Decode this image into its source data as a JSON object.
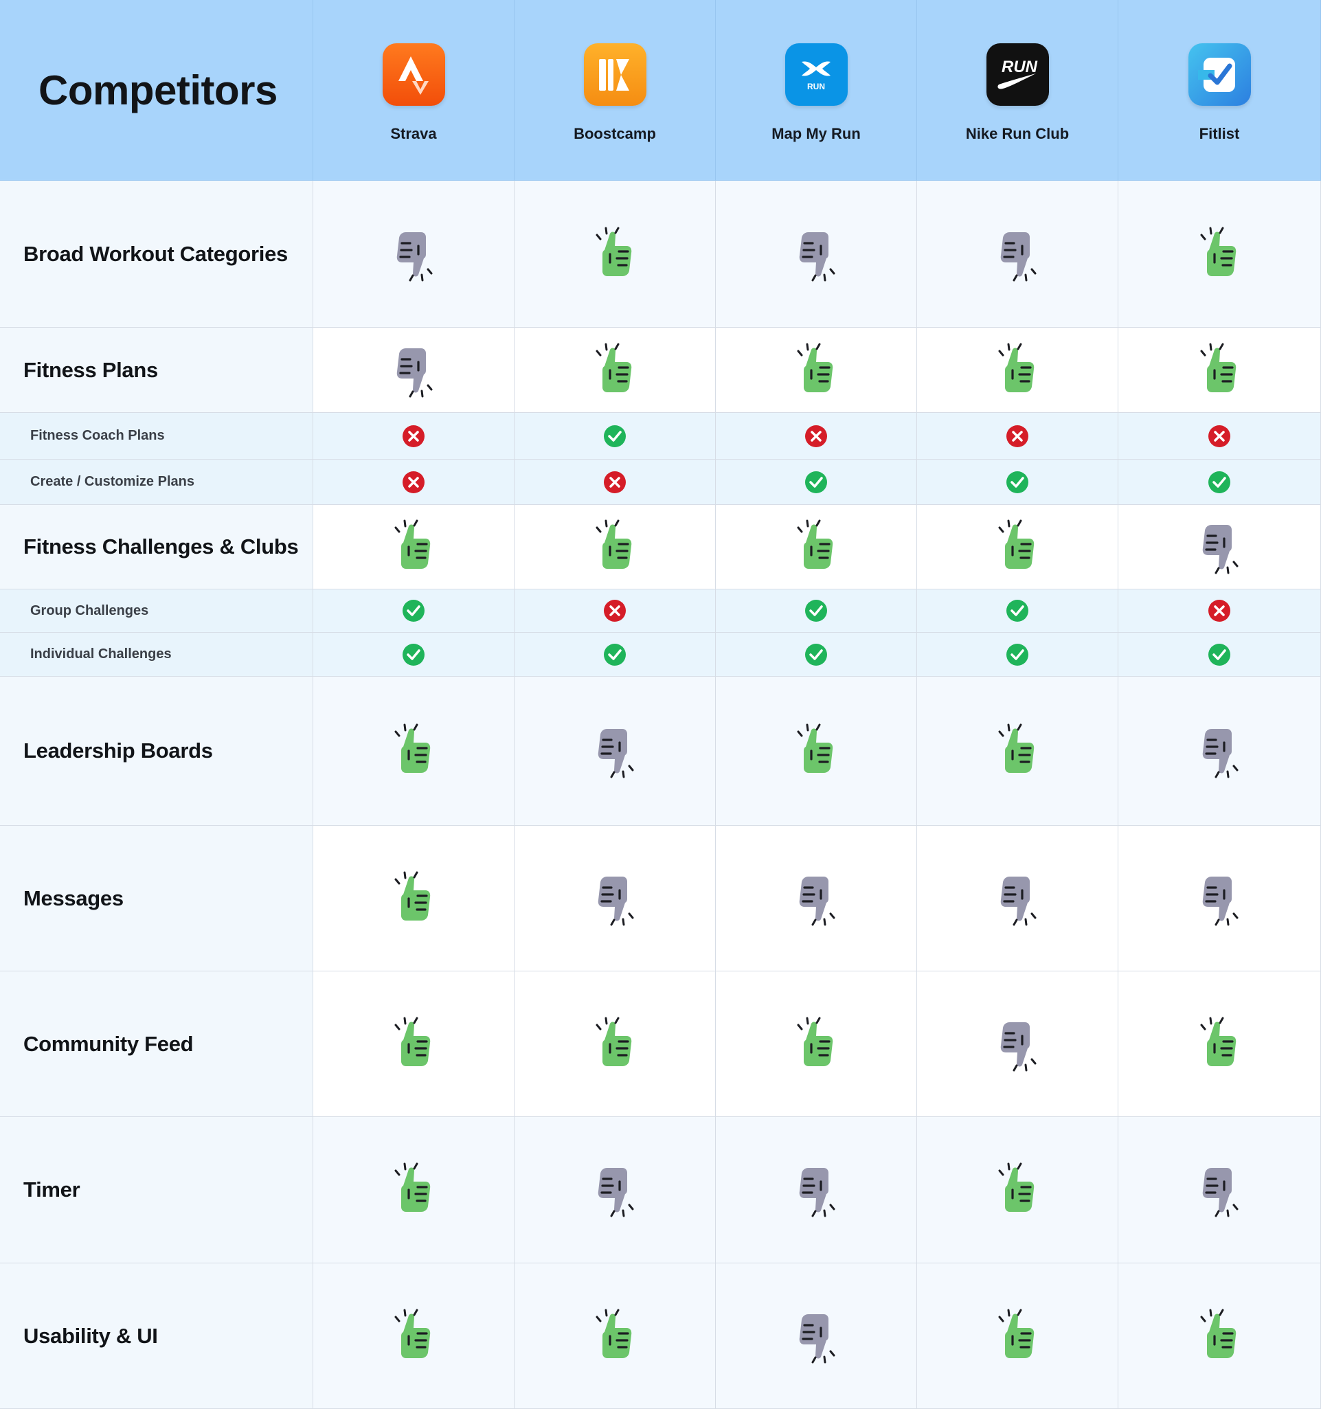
{
  "title": "Competitors",
  "competitors": [
    {
      "name": "Strava",
      "logo": "strava-logo-icon",
      "color": "#fc4c02"
    },
    {
      "name": "Boostcamp",
      "logo": "boostcamp-logo-icon",
      "color": "#fb9a1a"
    },
    {
      "name": "Map My Run",
      "logo": "mapmyrun-logo-icon",
      "color": "#0a94e6"
    },
    {
      "name": "Nike Run Club",
      "logo": "nike-run-club-logo-icon",
      "color": "#111111"
    },
    {
      "name": "Fitlist",
      "logo": "fitlist-logo-icon",
      "color": "#3cb9ee"
    }
  ],
  "logo_texts": {
    "mapmyrun": "RUN",
    "nike": "RUN"
  },
  "features": [
    {
      "label": "Broad Workout Categories",
      "type": "main",
      "marks": [
        "down",
        "up",
        "down",
        "down",
        "up"
      ]
    },
    {
      "label": "Fitness Plans",
      "type": "main",
      "marks": [
        "down",
        "up",
        "up",
        "up",
        "up"
      ]
    },
    {
      "label": "Fitness Coach Plans",
      "type": "sub",
      "marks": [
        "no",
        "yes",
        "no",
        "no",
        "no"
      ]
    },
    {
      "label": "Create / Customize Plans",
      "type": "sub",
      "marks": [
        "no",
        "no",
        "yes",
        "yes",
        "yes"
      ]
    },
    {
      "label": "Fitness Challenges & Clubs",
      "type": "main",
      "marks": [
        "up",
        "up",
        "up",
        "up",
        "down"
      ]
    },
    {
      "label": "Group Challenges",
      "type": "sub",
      "marks": [
        "yes",
        "no",
        "yes",
        "yes",
        "no"
      ]
    },
    {
      "label": "Individual Challenges",
      "type": "sub",
      "marks": [
        "yes",
        "yes",
        "yes",
        "yes",
        "yes"
      ]
    },
    {
      "label": "Leadership Boards",
      "type": "main",
      "marks": [
        "up",
        "down",
        "up",
        "up",
        "down"
      ]
    },
    {
      "label": "Messages",
      "type": "main",
      "marks": [
        "up",
        "down",
        "down",
        "down",
        "down"
      ]
    },
    {
      "label": "Community Feed",
      "type": "main",
      "marks": [
        "up",
        "up",
        "up",
        "down",
        "up"
      ]
    },
    {
      "label": "Timer",
      "type": "main",
      "marks": [
        "up",
        "down",
        "down",
        "up",
        "down"
      ]
    },
    {
      "label": "Usability & UI",
      "type": "main",
      "marks": [
        "up",
        "up",
        "down",
        "up",
        "up"
      ]
    }
  ],
  "colors": {
    "header_bg": "#a8d4fb",
    "thumb_up": "#6cc56a",
    "thumb_down": "#9797ad",
    "check": "#1fb45a",
    "cross": "#d51d28"
  }
}
